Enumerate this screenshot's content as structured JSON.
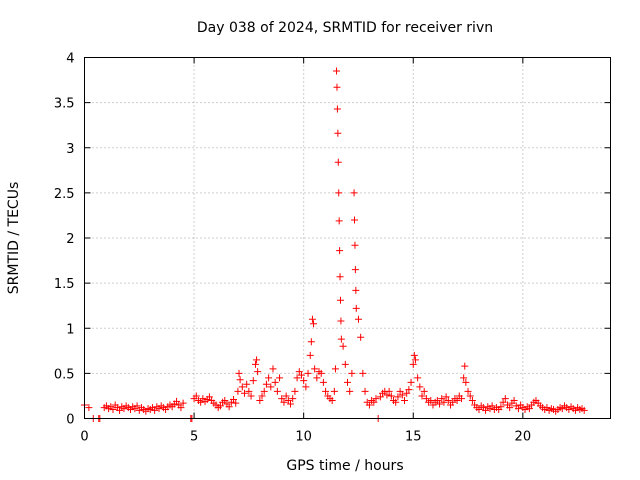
{
  "chart_data": {
    "type": "scatter",
    "title": "Day 038 of 2024, SRMTID for receiver rivn",
    "xlabel": "GPS time / hours",
    "ylabel": "SRMTID / TECUs",
    "xlim": [
      0,
      24
    ],
    "ylim": [
      0,
      4
    ],
    "x_ticks": [
      0,
      5,
      10,
      15,
      20
    ],
    "x_tick_labels": [
      "0",
      "5",
      "10",
      "15",
      "20"
    ],
    "y_ticks": [
      0,
      0.5,
      1,
      1.5,
      2,
      2.5,
      3,
      3.5,
      4
    ],
    "y_tick_labels": [
      "0",
      "0.5",
      "1",
      "1.5",
      "2",
      "2.5",
      "3",
      "3.5",
      "4"
    ],
    "grid": true,
    "marker": "+",
    "color": "#ff0000",
    "series": [
      {
        "name": "SRMTID",
        "points": [
          [
            0.0,
            0.15
          ],
          [
            0.2,
            0.12
          ],
          [
            0.4,
            0.0
          ],
          [
            0.65,
            0.0
          ],
          [
            0.7,
            0.0
          ],
          [
            0.9,
            0.12
          ],
          [
            1.0,
            0.14
          ],
          [
            1.1,
            0.11
          ],
          [
            1.2,
            0.13
          ],
          [
            1.3,
            0.1
          ],
          [
            1.4,
            0.15
          ],
          [
            1.5,
            0.12
          ],
          [
            1.6,
            0.09
          ],
          [
            1.7,
            0.13
          ],
          [
            1.8,
            0.11
          ],
          [
            1.9,
            0.14
          ],
          [
            2.0,
            0.12
          ],
          [
            2.1,
            0.1
          ],
          [
            2.2,
            0.13
          ],
          [
            2.3,
            0.11
          ],
          [
            2.4,
            0.14
          ],
          [
            2.5,
            0.09
          ],
          [
            2.6,
            0.12
          ],
          [
            2.7,
            0.1
          ],
          [
            2.8,
            0.08
          ],
          [
            2.9,
            0.11
          ],
          [
            3.0,
            0.1
          ],
          [
            3.1,
            0.12
          ],
          [
            3.2,
            0.09
          ],
          [
            3.3,
            0.13
          ],
          [
            3.4,
            0.11
          ],
          [
            3.5,
            0.14
          ],
          [
            3.6,
            0.12
          ],
          [
            3.7,
            0.1
          ],
          [
            3.8,
            0.13
          ],
          [
            3.9,
            0.15
          ],
          [
            4.0,
            0.13
          ],
          [
            4.1,
            0.16
          ],
          [
            4.2,
            0.19
          ],
          [
            4.3,
            0.15
          ],
          [
            4.4,
            0.12
          ],
          [
            4.5,
            0.17
          ],
          [
            4.85,
            0.0
          ],
          [
            4.9,
            0.0
          ],
          [
            5.0,
            0.22
          ],
          [
            5.1,
            0.25
          ],
          [
            5.2,
            0.2
          ],
          [
            5.3,
            0.18
          ],
          [
            5.4,
            0.22
          ],
          [
            5.5,
            0.19
          ],
          [
            5.6,
            0.21
          ],
          [
            5.7,
            0.24
          ],
          [
            5.8,
            0.2
          ],
          [
            5.9,
            0.17
          ],
          [
            6.0,
            0.15
          ],
          [
            6.1,
            0.12
          ],
          [
            6.2,
            0.14
          ],
          [
            6.3,
            0.18
          ],
          [
            6.4,
            0.2
          ],
          [
            6.5,
            0.16
          ],
          [
            6.6,
            0.13
          ],
          [
            6.7,
            0.18
          ],
          [
            6.8,
            0.21
          ],
          [
            6.9,
            0.17
          ],
          [
            7.0,
            0.3
          ],
          [
            7.05,
            0.5
          ],
          [
            7.1,
            0.43
          ],
          [
            7.2,
            0.35
          ],
          [
            7.3,
            0.28
          ],
          [
            7.4,
            0.38
          ],
          [
            7.5,
            0.3
          ],
          [
            7.6,
            0.25
          ],
          [
            7.7,
            0.42
          ],
          [
            7.8,
            0.6
          ],
          [
            7.85,
            0.65
          ],
          [
            7.9,
            0.52
          ],
          [
            8.0,
            0.2
          ],
          [
            8.1,
            0.25
          ],
          [
            8.2,
            0.3
          ],
          [
            8.3,
            0.38
          ],
          [
            8.4,
            0.45
          ],
          [
            8.5,
            0.35
          ],
          [
            8.6,
            0.55
          ],
          [
            8.7,
            0.4
          ],
          [
            8.8,
            0.3
          ],
          [
            8.9,
            0.45
          ],
          [
            9.0,
            0.22
          ],
          [
            9.1,
            0.18
          ],
          [
            9.2,
            0.25
          ],
          [
            9.3,
            0.2
          ],
          [
            9.4,
            0.16
          ],
          [
            9.5,
            0.22
          ],
          [
            9.6,
            0.3
          ],
          [
            9.7,
            0.45
          ],
          [
            9.8,
            0.52
          ],
          [
            9.9,
            0.48
          ],
          [
            10.0,
            0.42
          ],
          [
            10.1,
            0.35
          ],
          [
            10.2,
            0.5
          ],
          [
            10.3,
            0.7
          ],
          [
            10.35,
            0.85
          ],
          [
            10.4,
            1.1
          ],
          [
            10.45,
            1.05
          ],
          [
            10.5,
            0.55
          ],
          [
            10.6,
            0.45
          ],
          [
            10.7,
            0.52
          ],
          [
            10.8,
            0.5
          ],
          [
            10.9,
            0.4
          ],
          [
            11.0,
            0.3
          ],
          [
            11.1,
            0.25
          ],
          [
            11.2,
            0.22
          ],
          [
            11.3,
            0.2
          ],
          [
            11.4,
            0.3
          ],
          [
            11.45,
            0.55
          ],
          [
            11.5,
            3.85
          ],
          [
            11.52,
            3.67
          ],
          [
            11.54,
            3.43
          ],
          [
            11.56,
            3.16
          ],
          [
            11.58,
            2.84
          ],
          [
            11.6,
            2.5
          ],
          [
            11.62,
            2.19
          ],
          [
            11.64,
            1.86
          ],
          [
            11.66,
            1.57
          ],
          [
            11.68,
            1.31
          ],
          [
            11.7,
            1.08
          ],
          [
            11.72,
            0.88
          ],
          [
            11.8,
            0.8
          ],
          [
            11.9,
            0.6
          ],
          [
            12.0,
            0.4
          ],
          [
            12.1,
            0.3
          ],
          [
            12.2,
            0.5
          ],
          [
            12.3,
            2.5
          ],
          [
            12.32,
            2.2
          ],
          [
            12.34,
            1.92
          ],
          [
            12.36,
            1.65
          ],
          [
            12.38,
            1.42
          ],
          [
            12.4,
            1.22
          ],
          [
            12.5,
            1.1
          ],
          [
            12.6,
            0.9
          ],
          [
            12.7,
            0.5
          ],
          [
            12.8,
            0.3
          ],
          [
            12.9,
            0.18
          ],
          [
            13.0,
            0.15
          ],
          [
            13.1,
            0.2
          ],
          [
            13.2,
            0.18
          ],
          [
            13.3,
            0.22
          ],
          [
            13.4,
            0.0
          ],
          [
            13.5,
            0.24
          ],
          [
            13.6,
            0.28
          ],
          [
            13.7,
            0.3
          ],
          [
            13.8,
            0.26
          ],
          [
            13.9,
            0.3
          ],
          [
            14.0,
            0.25
          ],
          [
            14.1,
            0.2
          ],
          [
            14.2,
            0.18
          ],
          [
            14.3,
            0.24
          ],
          [
            14.4,
            0.3
          ],
          [
            14.5,
            0.26
          ],
          [
            14.6,
            0.2
          ],
          [
            14.7,
            0.28
          ],
          [
            14.8,
            0.32
          ],
          [
            14.9,
            0.4
          ],
          [
            15.0,
            0.6
          ],
          [
            15.05,
            0.7
          ],
          [
            15.1,
            0.65
          ],
          [
            15.2,
            0.45
          ],
          [
            15.3,
            0.35
          ],
          [
            15.4,
            0.25
          ],
          [
            15.5,
            0.3
          ],
          [
            15.6,
            0.22
          ],
          [
            15.7,
            0.18
          ],
          [
            15.8,
            0.2
          ],
          [
            15.9,
            0.15
          ],
          [
            16.0,
            0.18
          ],
          [
            16.1,
            0.2
          ],
          [
            16.2,
            0.16
          ],
          [
            16.3,
            0.22
          ],
          [
            16.4,
            0.18
          ],
          [
            16.5,
            0.24
          ],
          [
            16.6,
            0.2
          ],
          [
            16.7,
            0.15
          ],
          [
            16.8,
            0.18
          ],
          [
            16.9,
            0.22
          ],
          [
            17.0,
            0.2
          ],
          [
            17.1,
            0.25
          ],
          [
            17.2,
            0.22
          ],
          [
            17.3,
            0.45
          ],
          [
            17.35,
            0.58
          ],
          [
            17.4,
            0.4
          ],
          [
            17.5,
            0.3
          ],
          [
            17.6,
            0.25
          ],
          [
            17.7,
            0.2
          ],
          [
            17.8,
            0.15
          ],
          [
            17.9,
            0.12
          ],
          [
            18.0,
            0.1
          ],
          [
            18.1,
            0.14
          ],
          [
            18.2,
            0.12
          ],
          [
            18.3,
            0.09
          ],
          [
            18.4,
            0.13
          ],
          [
            18.5,
            0.11
          ],
          [
            18.6,
            0.14
          ],
          [
            18.7,
            0.1
          ],
          [
            18.8,
            0.12
          ],
          [
            18.9,
            0.1
          ],
          [
            19.0,
            0.13
          ],
          [
            19.1,
            0.18
          ],
          [
            19.2,
            0.22
          ],
          [
            19.3,
            0.15
          ],
          [
            19.4,
            0.12
          ],
          [
            19.5,
            0.17
          ],
          [
            19.6,
            0.2
          ],
          [
            19.7,
            0.14
          ],
          [
            19.8,
            0.11
          ],
          [
            19.9,
            0.15
          ],
          [
            20.0,
            0.12
          ],
          [
            20.1,
            0.1
          ],
          [
            20.2,
            0.13
          ],
          [
            20.3,
            0.11
          ],
          [
            20.4,
            0.15
          ],
          [
            20.5,
            0.18
          ],
          [
            20.6,
            0.2
          ],
          [
            20.7,
            0.17
          ],
          [
            20.8,
            0.14
          ],
          [
            20.9,
            0.12
          ],
          [
            21.0,
            0.1
          ],
          [
            21.1,
            0.12
          ],
          [
            21.2,
            0.09
          ],
          [
            21.3,
            0.11
          ],
          [
            21.4,
            0.1
          ],
          [
            21.5,
            0.08
          ],
          [
            21.6,
            0.1
          ],
          [
            21.7,
            0.12
          ],
          [
            21.8,
            0.11
          ],
          [
            21.9,
            0.14
          ],
          [
            22.0,
            0.12
          ],
          [
            22.1,
            0.1
          ],
          [
            22.2,
            0.13
          ],
          [
            22.3,
            0.11
          ],
          [
            22.4,
            0.09
          ],
          [
            22.5,
            0.12
          ],
          [
            22.6,
            0.1
          ],
          [
            22.7,
            0.11
          ],
          [
            22.8,
            0.09
          ]
        ]
      }
    ]
  }
}
